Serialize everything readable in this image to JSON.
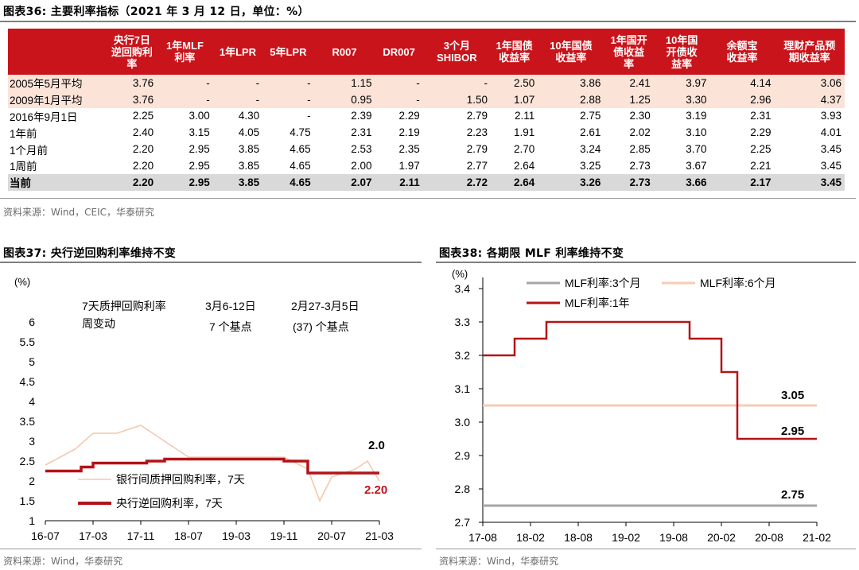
{
  "fig36": {
    "title": "图表36:  主要利率指标（2021 年 3 月 12 日，单位：%）",
    "headers": [
      "",
      "央行7日\n逆回购利\n率",
      "1年MLF\n利率",
      "1年LPR",
      "5年LPR",
      "R007",
      "DR007",
      "3个月\nSHIBOR",
      "1年国债\n收益率",
      "10年国债\n收益率",
      "1年国开\n债收益\n率",
      "10年国\n开债收\n益率",
      "余额宝\n收益率",
      "理财产品预\n期收益率"
    ],
    "rows": [
      {
        "label": "2005年5月平均",
        "cells": [
          "3.76",
          "-",
          "-",
          "-",
          "1.15",
          "-",
          "-",
          "2.50",
          "3.86",
          "2.41",
          "3.97",
          "4.14",
          "3.06"
        ]
      },
      {
        "label": "2009年1月平均",
        "cells": [
          "3.76",
          "-",
          "-",
          "-",
          "0.95",
          "-",
          "1.50",
          "1.07",
          "2.88",
          "1.25",
          "3.30",
          "2.96",
          "4.37"
        ]
      },
      {
        "label": "2016年9月1日",
        "cells": [
          "2.25",
          "3.00",
          "4.30",
          "-",
          "2.39",
          "2.29",
          "2.79",
          "2.11",
          "2.75",
          "2.30",
          "3.19",
          "2.31",
          "3.93"
        ]
      },
      {
        "label": "1年前",
        "cells": [
          "2.40",
          "3.15",
          "4.05",
          "4.75",
          "2.31",
          "2.19",
          "2.23",
          "1.91",
          "2.61",
          "2.02",
          "3.10",
          "2.29",
          "4.01"
        ]
      },
      {
        "label": "1个月前",
        "cells": [
          "2.20",
          "2.95",
          "3.85",
          "4.65",
          "2.53",
          "2.35",
          "2.79",
          "2.70",
          "3.24",
          "2.85",
          "3.70",
          "2.25",
          "3.45"
        ]
      },
      {
        "label": "1周前",
        "cells": [
          "2.20",
          "2.95",
          "3.85",
          "4.65",
          "2.00",
          "1.97",
          "2.77",
          "2.64",
          "3.25",
          "2.73",
          "3.67",
          "2.21",
          "3.45"
        ]
      },
      {
        "label": "当前",
        "cells": [
          "2.20",
          "2.95",
          "3.85",
          "4.65",
          "2.07",
          "2.11",
          "2.72",
          "2.64",
          "3.26",
          "2.73",
          "3.66",
          "2.17",
          "3.45"
        ]
      }
    ],
    "source": "资料来源：Wind，CEIC，华泰研究"
  },
  "fig37": {
    "title": "图表37:  央行逆回购利率维持不变",
    "unit": "(%)",
    "annotations": {
      "a1_line1": "7天质押回购利率",
      "a1_line2": "周变动",
      "a2_line1": "3月6-12日",
      "a2_line2": "7    个基点",
      "a3_line1": "2月27-3月5日",
      "a3_line2": "(37) 个基点",
      "end_interbank": "2.0",
      "end_policy": "2.20"
    },
    "legend": [
      "银行间质押回购利率，7天",
      "央行逆回购利率，7天"
    ],
    "source": "资料来源：Wind，华泰研究",
    "colors": {
      "interbank": "#f3c9ae",
      "policy": "#b31318",
      "end_policy": "#c0141c"
    }
  },
  "fig38": {
    "title": "图表38:  各期限 MLF 利率维持不变",
    "unit": "(%)",
    "legend": [
      "MLF利率:3个月",
      "MLF利率:6个月",
      "MLF利率:1年"
    ],
    "end_labels": {
      "m6": "3.05",
      "y1": "2.95",
      "m3": "2.75"
    },
    "source": "资料来源：Wind，华泰研究",
    "colors": {
      "m3": "#a6a6a6",
      "m6": "#f5cdb4",
      "y1": "#b31318"
    }
  },
  "chart_data": [
    {
      "type": "line",
      "title": "央行逆回购利率维持不变",
      "ylabel": "(%)",
      "x_ticks": [
        "16-07",
        "17-03",
        "17-11",
        "18-07",
        "19-03",
        "19-11",
        "20-07",
        "21-03"
      ],
      "ylim": [
        1,
        6
      ],
      "y_ticks": [
        "1",
        "1.5",
        "2",
        "2.5",
        "3",
        "3.5",
        "4",
        "4.5",
        "5",
        "5.5",
        "6"
      ],
      "series": [
        {
          "name": "银行间质押回购利率，7天",
          "x": [
            "16-07",
            "16-12",
            "17-03",
            "17-07",
            "17-11",
            "18-03",
            "18-07",
            "18-11",
            "19-03",
            "19-07",
            "19-11",
            "20-03",
            "20-05",
            "20-07",
            "20-11",
            "21-01",
            "21-03"
          ],
          "y": [
            2.4,
            2.8,
            3.2,
            3.2,
            3.4,
            3.0,
            2.6,
            2.6,
            2.6,
            2.6,
            2.6,
            2.3,
            1.5,
            2.1,
            2.3,
            2.5,
            2.0
          ]
        },
        {
          "name": "央行逆回购利率，7天",
          "x": [
            "16-07",
            "17-01",
            "17-03",
            "17-12",
            "18-03",
            "19-11",
            "20-03",
            "21-03"
          ],
          "y": [
            2.25,
            2.35,
            2.45,
            2.5,
            2.55,
            2.5,
            2.2,
            2.2
          ]
        }
      ]
    },
    {
      "type": "line",
      "title": "各期限 MLF 利率维持不变",
      "ylabel": "(%)",
      "x_ticks": [
        "17-08",
        "18-02",
        "18-08",
        "19-02",
        "19-08",
        "20-02",
        "20-08",
        "21-02"
      ],
      "ylim": [
        2.7,
        3.4
      ],
      "y_ticks": [
        "2.7",
        "2.8",
        "2.9",
        "3.0",
        "3.1",
        "3.2",
        "3.3",
        "3.4"
      ],
      "series": [
        {
          "name": "MLF利率:3个月",
          "x": [
            "17-08",
            "21-02"
          ],
          "y": [
            2.75,
            2.75
          ]
        },
        {
          "name": "MLF利率:6个月",
          "x": [
            "17-08",
            "21-02"
          ],
          "y": [
            3.05,
            3.05
          ]
        },
        {
          "name": "MLF利率:1年",
          "x": [
            "17-08",
            "17-12",
            "18-04",
            "19-10",
            "20-02",
            "20-04",
            "21-02"
          ],
          "y": [
            3.2,
            3.25,
            3.3,
            3.25,
            3.15,
            2.95,
            2.95
          ]
        }
      ]
    }
  ]
}
